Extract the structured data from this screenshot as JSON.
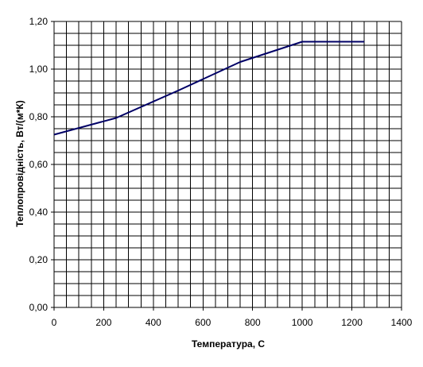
{
  "chart_data": {
    "type": "line",
    "xlabel": "Температура, С",
    "ylabel": "Теплопровідність, Вт/(м*К)",
    "xlim": [
      0,
      1400
    ],
    "ylim": [
      0,
      1.2
    ],
    "x_ticks": [
      0,
      200,
      400,
      600,
      800,
      1000,
      1200,
      1400
    ],
    "x_tick_labels": [
      "0",
      "200",
      "400",
      "600",
      "800",
      "1000",
      "1200",
      "1400"
    ],
    "y_ticks": [
      0,
      0.2,
      0.4,
      0.6,
      0.8,
      1.0,
      1.2
    ],
    "y_tick_labels": [
      "0,00",
      "0,20",
      "0,40",
      "0,60",
      "0,80",
      "1,00",
      "1,20"
    ],
    "grid": true,
    "series": [
      {
        "color": "#000066",
        "x": [
          0,
          250,
          500,
          750,
          1000,
          1250
        ],
        "y": [
          0.725,
          0.795,
          0.91,
          1.03,
          1.115,
          1.115
        ]
      }
    ]
  }
}
